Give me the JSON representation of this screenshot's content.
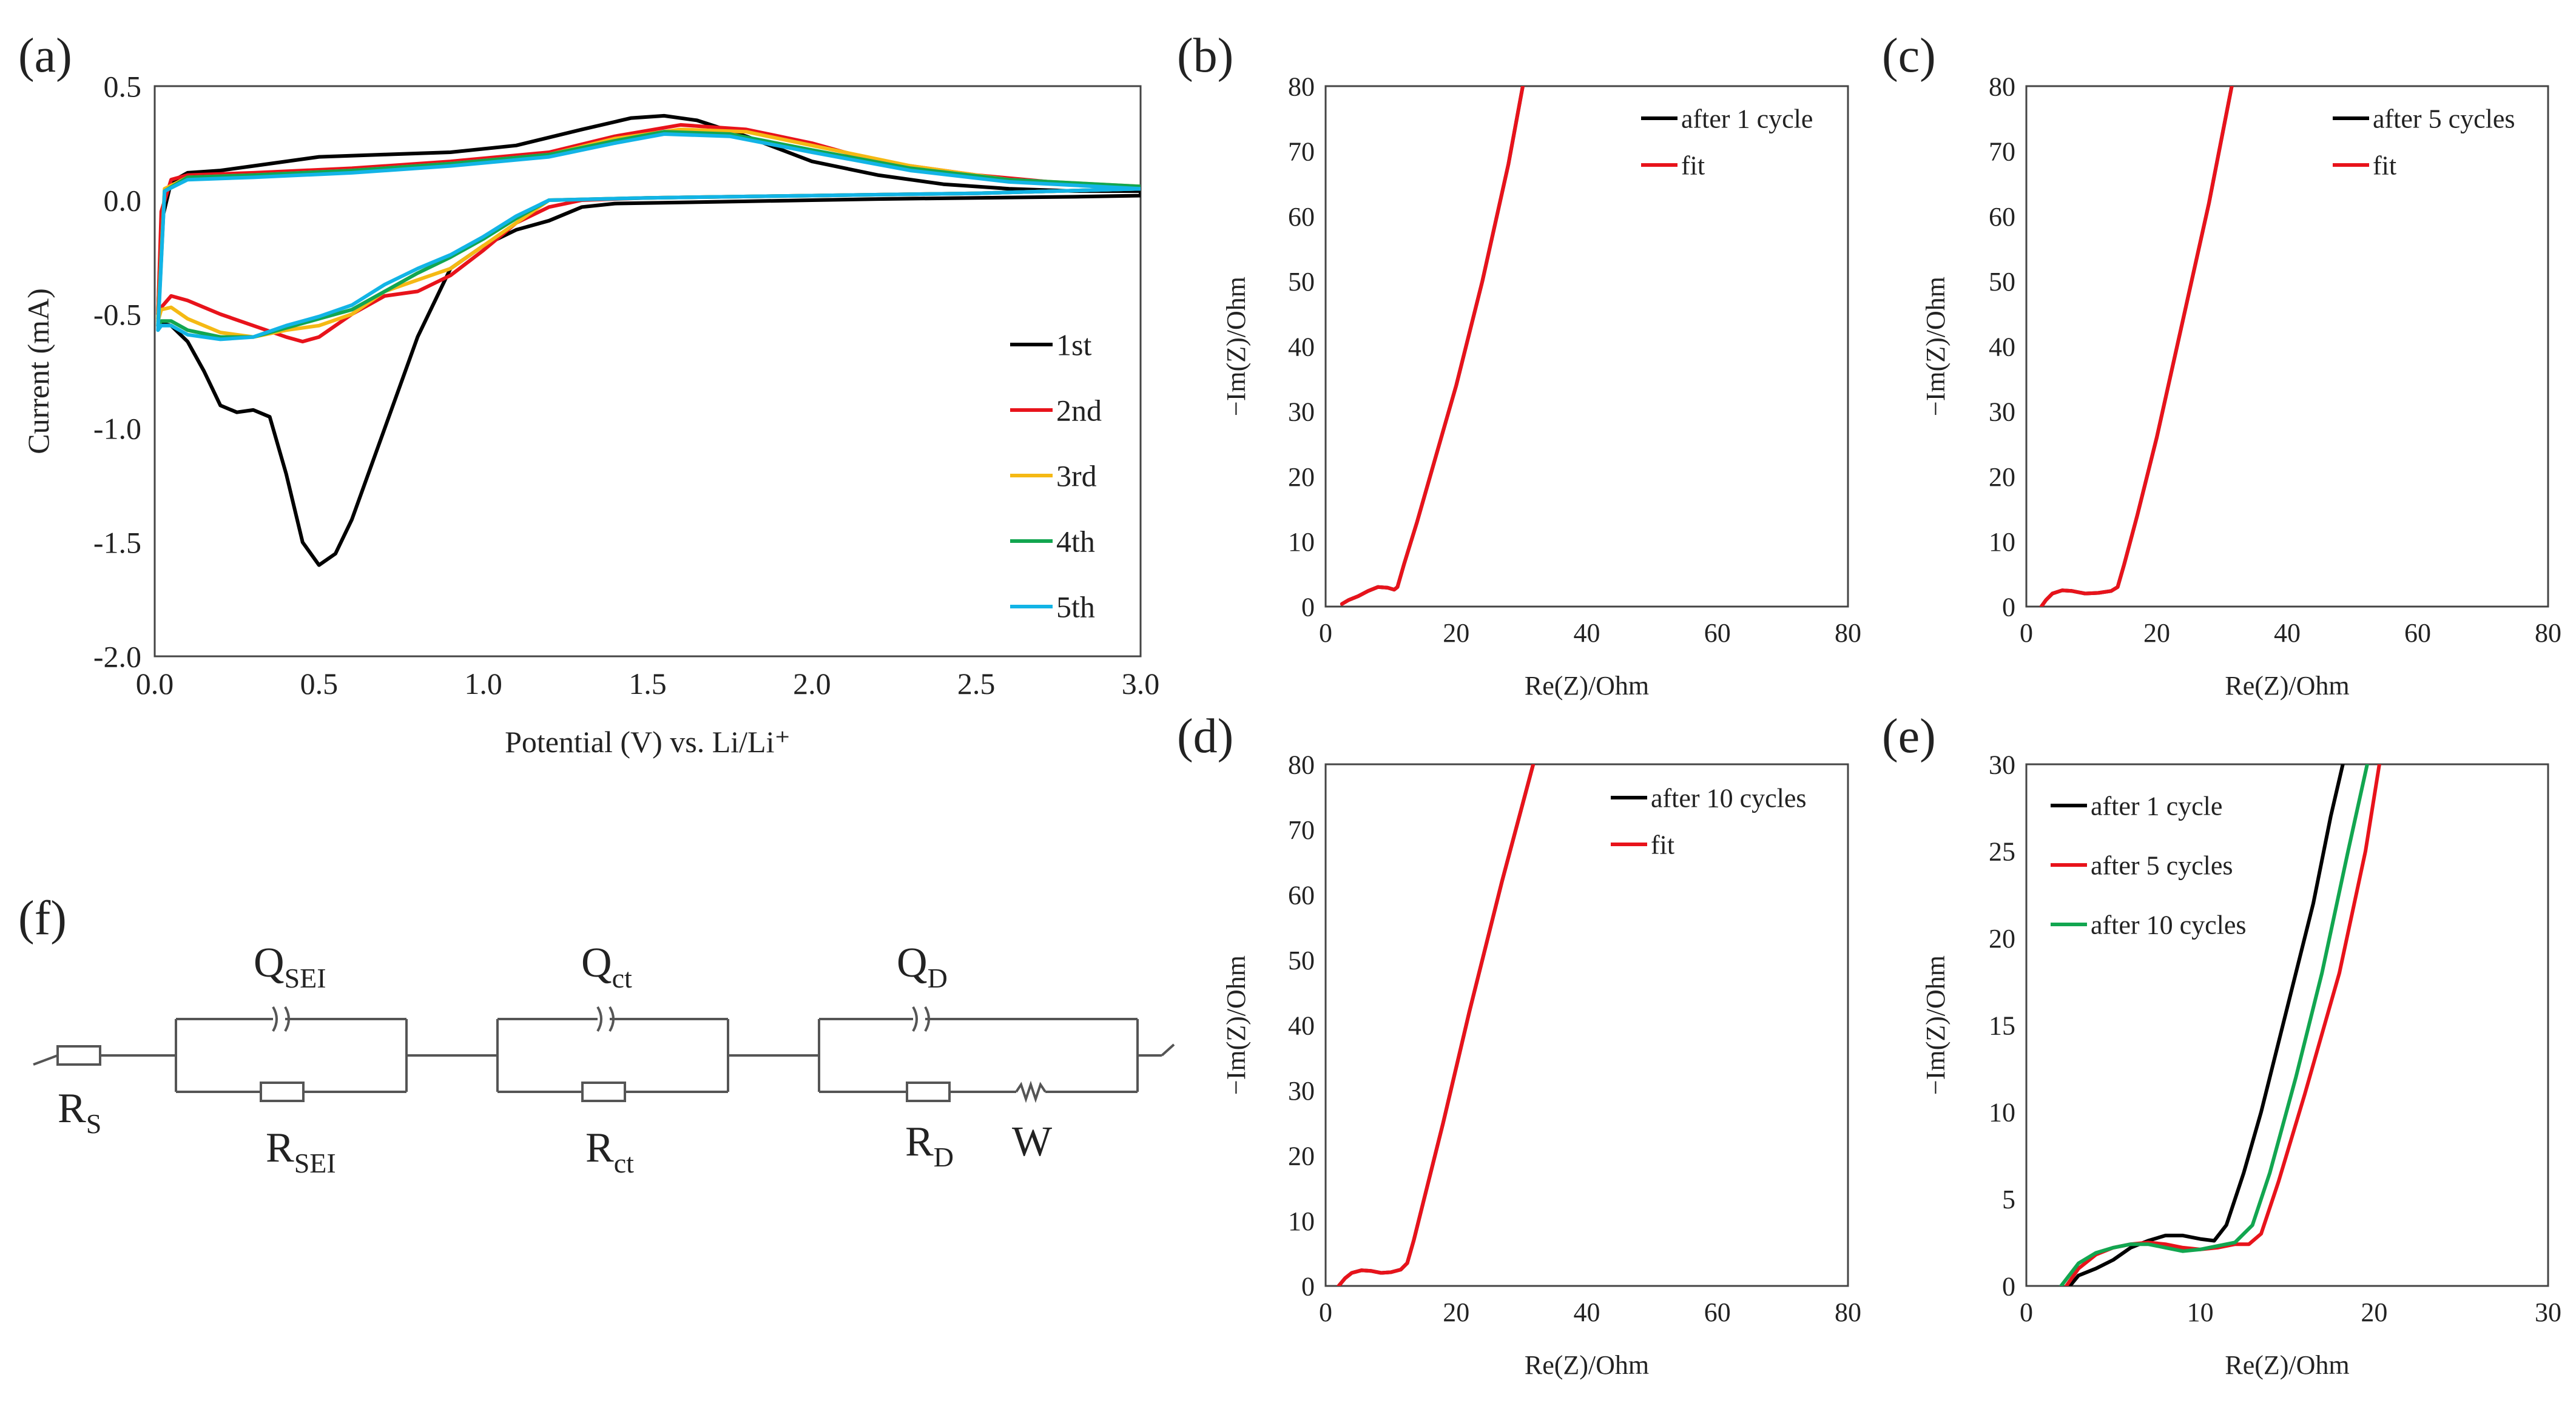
{
  "panels": {
    "a": {
      "letter": "(a)"
    },
    "b": {
      "letter": "(b)"
    },
    "c": {
      "letter": "(c)"
    },
    "d": {
      "letter": "(d)"
    },
    "e": {
      "letter": "(e)"
    },
    "f": {
      "letter": "(f)"
    }
  },
  "circuit": {
    "labels": {
      "rs": "R",
      "rs_sub": "S",
      "qsei": "Q",
      "qsei_sub": "SEI",
      "rsei": "R",
      "rsei_sub": "SEI",
      "qct": "Q",
      "qct_sub": "ct",
      "rct": "R",
      "rct_sub": "ct",
      "qd": "Q",
      "qd_sub": "D",
      "rd": "R",
      "rd_sub": "D",
      "w": "W"
    }
  },
  "colors": {
    "black": "#000000",
    "red": "#e8131b",
    "yellow": "#f5b914",
    "green": "#12a650",
    "cyan": "#12b4e6",
    "axis": "#444444",
    "text": "#222222"
  },
  "chart_data": [
    {
      "id": "a",
      "type": "line",
      "title": "",
      "xlabel": "Potential (V) vs. Li/Li⁺",
      "ylabel": "Current (mA)",
      "xlim": [
        0.0,
        3.0
      ],
      "ylim": [
        -2.0,
        0.5
      ],
      "xticks": [
        0,
        0.5,
        1,
        1.5,
        2,
        2.5,
        3
      ],
      "xtick_labels": [
        "0.0",
        "0.5",
        "1.0",
        "1.5",
        "2.0",
        "2.5",
        "3.0"
      ],
      "yticks": [
        0.5,
        0,
        -0.5,
        -1,
        -1.5,
        -2
      ],
      "ytick_labels": [
        "0.5",
        "0.0",
        "-0.5",
        "-1.0",
        "-1.5",
        "-2.0"
      ],
      "legend_position": "right",
      "series": [
        {
          "name": "1st",
          "color": "#000000",
          "x": [
            0.01,
            0.02,
            0.05,
            0.1,
            0.2,
            0.3,
            0.5,
            0.7,
            0.9,
            1.1,
            1.3,
            1.45,
            1.55,
            1.65,
            1.8,
            2.0,
            2.2,
            2.4,
            2.6,
            2.8,
            3.0,
            3.0,
            2.8,
            2.5,
            2.2,
            2.0,
            1.8,
            1.6,
            1.4,
            1.3,
            1.2,
            1.1,
            1.0,
            0.9,
            0.8,
            0.7,
            0.6,
            0.55,
            0.5,
            0.45,
            0.4,
            0.35,
            0.3,
            0.25,
            0.2,
            0.15,
            0.1,
            0.05,
            0.02,
            0.01
          ],
          "y": [
            -0.5,
            -0.1,
            0.08,
            0.12,
            0.13,
            0.15,
            0.19,
            0.2,
            0.21,
            0.24,
            0.31,
            0.36,
            0.37,
            0.35,
            0.28,
            0.17,
            0.11,
            0.07,
            0.05,
            0.04,
            0.04,
            0.02,
            0.015,
            0.01,
            0.005,
            0.0,
            -0.005,
            -0.01,
            -0.015,
            -0.03,
            -0.09,
            -0.13,
            -0.2,
            -0.3,
            -0.6,
            -1.0,
            -1.4,
            -1.55,
            -1.6,
            -1.5,
            -1.2,
            -0.95,
            -0.92,
            -0.93,
            -0.9,
            -0.75,
            -0.62,
            -0.55,
            -0.54,
            -0.55
          ]
        },
        {
          "name": "2nd",
          "color": "#e8131b",
          "x": [
            0.01,
            0.02,
            0.05,
            0.1,
            0.3,
            0.6,
            0.9,
            1.2,
            1.4,
            1.6,
            1.8,
            2.0,
            2.2,
            2.5,
            2.8,
            3.0,
            3.0,
            2.5,
            2.0,
            1.5,
            1.3,
            1.2,
            1.1,
            1.0,
            0.9,
            0.8,
            0.7,
            0.6,
            0.5,
            0.45,
            0.4,
            0.3,
            0.2,
            0.1,
            0.05,
            0.02,
            0.01
          ],
          "y": [
            -0.5,
            -0.05,
            0.09,
            0.11,
            0.12,
            0.14,
            0.17,
            0.21,
            0.28,
            0.33,
            0.31,
            0.25,
            0.17,
            0.11,
            0.07,
            0.06,
            0.05,
            0.03,
            0.02,
            0.01,
            0.0,
            -0.03,
            -0.1,
            -0.22,
            -0.33,
            -0.4,
            -0.42,
            -0.5,
            -0.6,
            -0.62,
            -0.6,
            -0.55,
            -0.5,
            -0.44,
            -0.42,
            -0.47,
            -0.52
          ]
        },
        {
          "name": "3rd",
          "color": "#f5b914",
          "x": [
            0.01,
            0.03,
            0.1,
            0.3,
            0.6,
            0.9,
            1.2,
            1.4,
            1.6,
            1.8,
            2.0,
            2.3,
            2.6,
            3.0,
            3.0,
            2.5,
            2.0,
            1.5,
            1.2,
            1.1,
            1.0,
            0.9,
            0.8,
            0.7,
            0.6,
            0.5,
            0.4,
            0.3,
            0.2,
            0.1,
            0.05,
            0.02,
            0.01
          ],
          "y": [
            -0.52,
            0.05,
            0.1,
            0.11,
            0.13,
            0.16,
            0.2,
            0.27,
            0.31,
            0.3,
            0.24,
            0.15,
            0.09,
            0.06,
            0.05,
            0.03,
            0.02,
            0.01,
            0.0,
            -0.1,
            -0.2,
            -0.3,
            -0.35,
            -0.4,
            -0.5,
            -0.55,
            -0.57,
            -0.6,
            -0.58,
            -0.52,
            -0.47,
            -0.48,
            -0.53
          ]
        },
        {
          "name": "4th",
          "color": "#12a650",
          "x": [
            0.01,
            0.03,
            0.1,
            0.3,
            0.6,
            0.9,
            1.2,
            1.4,
            1.55,
            1.75,
            2.0,
            2.3,
            2.6,
            3.0,
            3.0,
            2.5,
            2.0,
            1.5,
            1.2,
            1.1,
            1.0,
            0.9,
            0.8,
            0.7,
            0.6,
            0.5,
            0.4,
            0.3,
            0.2,
            0.1,
            0.05,
            0.02,
            0.01
          ],
          "y": [
            -0.55,
            0.04,
            0.1,
            0.11,
            0.13,
            0.16,
            0.2,
            0.26,
            0.3,
            0.29,
            0.22,
            0.14,
            0.09,
            0.06,
            0.05,
            0.03,
            0.02,
            0.01,
            0.0,
            -0.08,
            -0.17,
            -0.25,
            -0.32,
            -0.4,
            -0.48,
            -0.52,
            -0.56,
            -0.6,
            -0.6,
            -0.57,
            -0.53,
            -0.53,
            -0.55
          ]
        },
        {
          "name": "5th",
          "color": "#12b4e6",
          "x": [
            0.01,
            0.03,
            0.1,
            0.3,
            0.6,
            0.9,
            1.2,
            1.4,
            1.55,
            1.75,
            2.0,
            2.3,
            2.6,
            3.0,
            3.0,
            2.5,
            2.0,
            1.5,
            1.2,
            1.1,
            1.0,
            0.9,
            0.8,
            0.7,
            0.6,
            0.5,
            0.4,
            0.3,
            0.2,
            0.1,
            0.05,
            0.02,
            0.01
          ],
          "y": [
            -0.57,
            0.04,
            0.09,
            0.1,
            0.12,
            0.15,
            0.19,
            0.25,
            0.29,
            0.28,
            0.21,
            0.13,
            0.08,
            0.05,
            0.05,
            0.03,
            0.02,
            0.01,
            0.0,
            -0.07,
            -0.16,
            -0.24,
            -0.3,
            -0.37,
            -0.46,
            -0.51,
            -0.55,
            -0.6,
            -0.61,
            -0.59,
            -0.55,
            -0.55,
            -0.57
          ]
        }
      ]
    },
    {
      "id": "b",
      "type": "line",
      "title": "",
      "xlabel": "Re(Z)/Ohm",
      "ylabel": "−Im(Z)/Ohm",
      "xlim": [
        0,
        80
      ],
      "ylim": [
        0,
        80
      ],
      "xticks": [
        0,
        20,
        40,
        60,
        80
      ],
      "xtick_labels": [
        "0",
        "20",
        "40",
        "60",
        "80"
      ],
      "yticks": [
        0,
        10,
        20,
        30,
        40,
        50,
        60,
        70,
        80
      ],
      "ytick_labels": [
        "0",
        "10",
        "20",
        "30",
        "40",
        "50",
        "60",
        "70",
        "80"
      ],
      "legend_position": "top-right",
      "series": [
        {
          "name": "after 1 cycle",
          "color": "#000000",
          "x": [
            2.5,
            3.5,
            5,
            6.5,
            8,
            9.5,
            10.5,
            11,
            12,
            14,
            16,
            18,
            20,
            24,
            28,
            30.2
          ],
          "y": [
            0.4,
            1.0,
            1.6,
            2.4,
            3.0,
            2.9,
            2.6,
            3.0,
            6.5,
            13,
            20,
            27,
            34,
            50,
            68,
            80
          ]
        },
        {
          "name": "fit",
          "color": "#e8131b",
          "x": [
            2.5,
            3.5,
            5,
            6.5,
            8,
            9.5,
            10.5,
            11,
            12,
            14,
            16,
            18,
            20,
            24,
            28,
            30.2
          ],
          "y": [
            0.4,
            1.0,
            1.6,
            2.4,
            3.0,
            2.9,
            2.6,
            3.0,
            6.5,
            13,
            20,
            27,
            34,
            50,
            68,
            80
          ]
        }
      ]
    },
    {
      "id": "c",
      "type": "line",
      "title": "",
      "xlabel": "Re(Z)/Ohm",
      "ylabel": "−Im(Z)/Ohm",
      "xlim": [
        0,
        80
      ],
      "ylim": [
        0,
        80
      ],
      "xticks": [
        0,
        20,
        40,
        60,
        80
      ],
      "xtick_labels": [
        "0",
        "20",
        "40",
        "60",
        "80"
      ],
      "yticks": [
        0,
        10,
        20,
        30,
        40,
        50,
        60,
        70,
        80
      ],
      "ytick_labels": [
        "0",
        "10",
        "20",
        "30",
        "40",
        "50",
        "60",
        "70",
        "80"
      ],
      "legend_position": "top-right",
      "series": [
        {
          "name": "after 5 cycles",
          "color": "#000000",
          "x": [
            2.3,
            3,
            4,
            5.5,
            7,
            9,
            11,
            13,
            14,
            15,
            17,
            20,
            24,
            28,
            31.5
          ],
          "y": [
            0.0,
            1.0,
            2.0,
            2.5,
            2.4,
            2.0,
            2.1,
            2.4,
            3.0,
            6.5,
            14,
            26,
            44,
            62,
            80
          ]
        },
        {
          "name": "fit",
          "color": "#e8131b",
          "x": [
            2.3,
            3,
            4,
            5.5,
            7,
            9,
            11,
            13,
            14,
            15,
            17,
            20,
            24,
            28,
            31.5
          ],
          "y": [
            0.0,
            1.0,
            2.0,
            2.5,
            2.4,
            2.0,
            2.1,
            2.4,
            3.0,
            6.5,
            14,
            26,
            44,
            62,
            80
          ]
        }
      ]
    },
    {
      "id": "d",
      "type": "line",
      "title": "",
      "xlabel": "Re(Z)/Ohm",
      "ylabel": "−Im(Z)/Ohm",
      "xlim": [
        0,
        80
      ],
      "ylim": [
        0,
        80
      ],
      "xticks": [
        0,
        20,
        40,
        60,
        80
      ],
      "xtick_labels": [
        "0",
        "20",
        "40",
        "60",
        "80"
      ],
      "yticks": [
        0,
        10,
        20,
        30,
        40,
        50,
        60,
        70,
        80
      ],
      "ytick_labels": [
        "0",
        "10",
        "20",
        "30",
        "40",
        "50",
        "60",
        "70",
        "80"
      ],
      "legend_position": "top-right",
      "series": [
        {
          "name": "after 10 cycles",
          "color": "#000000",
          "x": [
            2.0,
            3,
            4,
            5.5,
            7,
            8.5,
            10,
            11.5,
            12.5,
            13.5,
            15,
            18,
            22,
            27,
            31.8
          ],
          "y": [
            0.0,
            1.2,
            2.0,
            2.4,
            2.3,
            2.0,
            2.1,
            2.5,
            3.5,
            7,
            13,
            25,
            42,
            62,
            80
          ]
        },
        {
          "name": "fit",
          "color": "#e8131b",
          "x": [
            2.0,
            3,
            4,
            5.5,
            7,
            8.5,
            10,
            11.5,
            12.5,
            13.5,
            15,
            18,
            22,
            27,
            31.8
          ],
          "y": [
            0.0,
            1.2,
            2.0,
            2.4,
            2.3,
            2.0,
            2.1,
            2.5,
            3.5,
            7,
            13,
            25,
            42,
            62,
            80
          ]
        }
      ]
    },
    {
      "id": "e",
      "type": "line",
      "title": "",
      "xlabel": "Re(Z)/Ohm",
      "ylabel": "−Im(Z)/Ohm",
      "xlim": [
        0,
        30
      ],
      "ylim": [
        0,
        30
      ],
      "xticks": [
        0,
        10,
        20,
        30
      ],
      "xtick_labels": [
        "0",
        "10",
        "20",
        "30"
      ],
      "yticks": [
        0,
        5,
        10,
        15,
        20,
        25,
        30
      ],
      "ytick_labels": [
        "0",
        "5",
        "10",
        "15",
        "20",
        "25",
        "30"
      ],
      "legend_position": "top-left",
      "series": [
        {
          "name": "after 1 cycle",
          "color": "#000000",
          "x": [
            2.5,
            3,
            4,
            5,
            6,
            7,
            8,
            9,
            10,
            10.8,
            11.5,
            12.5,
            13.5,
            15,
            16.5,
            17.5,
            18.2
          ],
          "y": [
            0.0,
            0.6,
            1.0,
            1.5,
            2.2,
            2.6,
            2.9,
            2.9,
            2.7,
            2.6,
            3.5,
            6.5,
            10,
            16,
            22,
            27,
            30
          ]
        },
        {
          "name": "after 5 cycles",
          "color": "#e8131b",
          "x": [
            2.3,
            3,
            4,
            5,
            6,
            7,
            8,
            9,
            10,
            11,
            12,
            12.8,
            13.5,
            14.5,
            16,
            18,
            19.5,
            20.3
          ],
          "y": [
            0.0,
            1.0,
            1.8,
            2.2,
            2.4,
            2.5,
            2.4,
            2.2,
            2.1,
            2.2,
            2.4,
            2.4,
            3.0,
            6,
            11,
            18,
            25,
            30
          ]
        },
        {
          "name": "after 10 cycles",
          "color": "#12a650",
          "x": [
            2.0,
            3,
            4,
            5,
            6,
            7,
            8,
            9,
            10,
            11,
            12,
            13,
            14,
            15.5,
            17,
            18.5,
            19.6
          ],
          "y": [
            0.0,
            1.3,
            1.9,
            2.2,
            2.4,
            2.4,
            2.2,
            2.0,
            2.1,
            2.3,
            2.5,
            3.5,
            6.5,
            12,
            18,
            25,
            30
          ]
        }
      ]
    }
  ]
}
